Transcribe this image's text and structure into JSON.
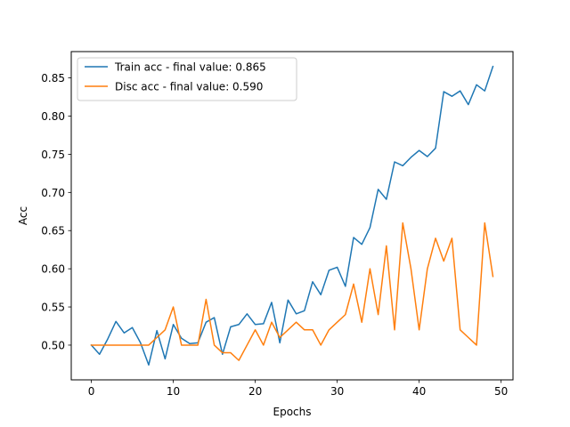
{
  "chart_data": {
    "type": "line",
    "xlabel": "Epochs",
    "ylabel": "Acc",
    "xlim": [
      -2.45,
      51.45
    ],
    "ylim": [
      0.4545,
      0.8845
    ],
    "xticks": [
      0,
      10,
      20,
      30,
      40,
      50
    ],
    "xtick_labels": [
      "0",
      "10",
      "20",
      "30",
      "40",
      "50"
    ],
    "yticks": [
      0.5,
      0.55,
      0.6,
      0.65,
      0.7,
      0.75,
      0.8,
      0.85
    ],
    "ytick_labels": [
      "0.50",
      "0.55",
      "0.60",
      "0.65",
      "0.70",
      "0.75",
      "0.80",
      "0.85"
    ],
    "grid": false,
    "legend_position": "upper-left",
    "x": [
      0,
      1,
      2,
      3,
      4,
      5,
      6,
      7,
      8,
      9,
      10,
      11,
      12,
      13,
      14,
      15,
      16,
      17,
      18,
      19,
      20,
      21,
      22,
      23,
      24,
      25,
      26,
      27,
      28,
      29,
      30,
      31,
      32,
      33,
      34,
      35,
      36,
      37,
      38,
      39,
      40,
      41,
      42,
      43,
      44,
      45,
      46,
      47,
      48,
      49
    ],
    "series": [
      {
        "name": "Train acc - final value: 0.865",
        "color": "#1f77b4",
        "values": [
          0.5,
          0.488,
          0.508,
          0.531,
          0.516,
          0.523,
          0.503,
          0.474,
          0.519,
          0.482,
          0.527,
          0.509,
          0.502,
          0.503,
          0.53,
          0.536,
          0.488,
          0.524,
          0.527,
          0.541,
          0.527,
          0.528,
          0.556,
          0.503,
          0.559,
          0.541,
          0.545,
          0.583,
          0.566,
          0.598,
          0.602,
          0.577,
          0.641,
          0.632,
          0.654,
          0.704,
          0.691,
          0.74,
          0.735,
          0.746,
          0.755,
          0.747,
          0.758,
          0.832,
          0.826,
          0.833,
          0.815,
          0.841,
          0.833,
          0.865
        ]
      },
      {
        "name": "Disc acc - final value: 0.590",
        "color": "#ff7f0e",
        "values": [
          0.5,
          0.5,
          0.5,
          0.5,
          0.5,
          0.5,
          0.5,
          0.5,
          0.51,
          0.52,
          0.55,
          0.5,
          0.5,
          0.5,
          0.56,
          0.5,
          0.49,
          0.49,
          0.48,
          0.5,
          0.52,
          0.5,
          0.53,
          0.51,
          0.52,
          0.53,
          0.52,
          0.52,
          0.5,
          0.52,
          0.53,
          0.54,
          0.58,
          0.53,
          0.6,
          0.54,
          0.63,
          0.52,
          0.66,
          0.6,
          0.52,
          0.6,
          0.64,
          0.61,
          0.64,
          0.52,
          0.51,
          0.5,
          0.66,
          0.59
        ]
      }
    ]
  }
}
